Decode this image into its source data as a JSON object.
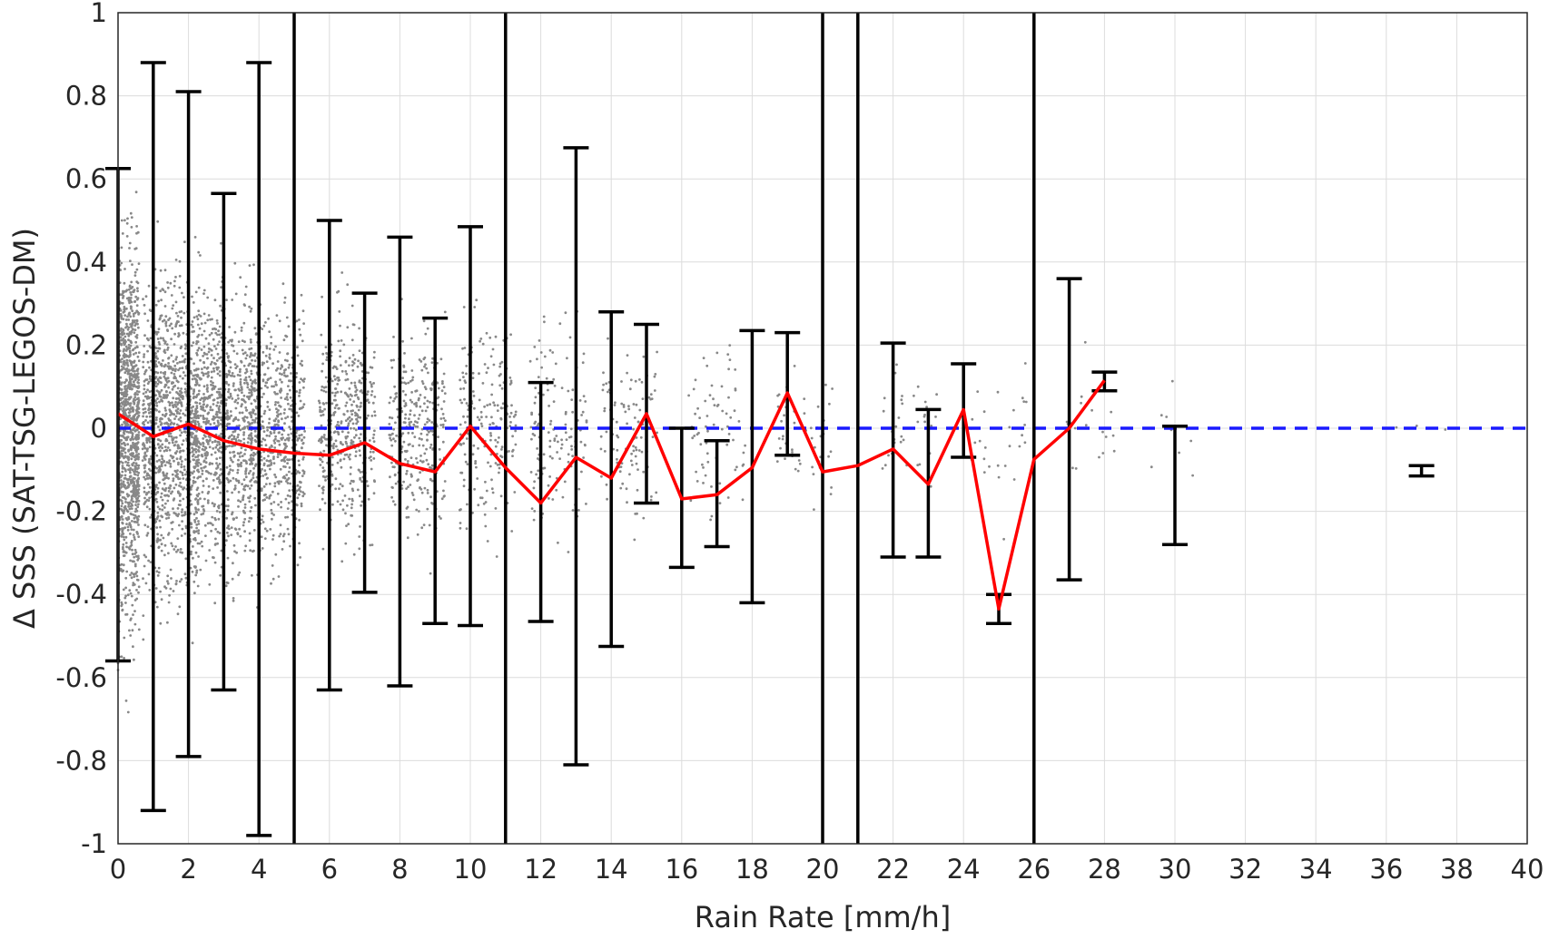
{
  "chart_data": {
    "type": "scatter",
    "xlabel": "Rain Rate [mm/h]",
    "ylabel": "Δ SSS (SAT-TSG-LEGOS-DM)",
    "xlim": [
      0,
      40
    ],
    "ylim": [
      -1,
      1
    ],
    "xticks": [
      0,
      2,
      4,
      6,
      8,
      10,
      12,
      14,
      16,
      18,
      20,
      22,
      24,
      26,
      28,
      30,
      32,
      34,
      36,
      38,
      40
    ],
    "yticks": [
      -1,
      -0.8,
      -0.6,
      -0.4,
      -0.2,
      0,
      0.2,
      0.4,
      0.6,
      0.8,
      1
    ],
    "ytick_labels": [
      "-1",
      "-0.8",
      "-0.6",
      "-0.4",
      "-0.2",
      "0",
      "0.2",
      "0.4",
      "0.6",
      "0.8",
      "1"
    ],
    "grid": true,
    "reference_line": {
      "y": 0,
      "color": "#1a1aff",
      "style": "dashed"
    },
    "mean_line": {
      "color": "#ff0000",
      "x": [
        0,
        1,
        2,
        3,
        4,
        5,
        6,
        7,
        8,
        9,
        10,
        11,
        12,
        13,
        14,
        15,
        16,
        17,
        18,
        19,
        20,
        21,
        22,
        23,
        24,
        25,
        26,
        27,
        28
      ],
      "y": [
        0.035,
        -0.02,
        0.01,
        -0.03,
        -0.05,
        -0.06,
        -0.065,
        -0.035,
        -0.085,
        -0.105,
        0.005,
        -0.095,
        -0.18,
        -0.07,
        -0.12,
        0.035,
        -0.17,
        -0.16,
        -0.095,
        0.085,
        -0.105,
        -0.09,
        -0.05,
        -0.135,
        0.045,
        -0.435,
        -0.075,
        0.0,
        0.115
      ]
    },
    "error_bars": {
      "color": "#000000",
      "x": [
        0,
        1,
        2,
        3,
        4,
        6,
        7,
        8,
        9,
        10,
        12,
        13,
        14,
        15,
        16,
        17,
        18,
        19,
        22,
        23,
        24,
        25,
        27,
        28,
        30,
        37
      ],
      "upper": [
        0.625,
        0.88,
        0.81,
        0.565,
        0.88,
        0.5,
        0.325,
        0.46,
        0.265,
        0.485,
        0.11,
        0.675,
        0.28,
        0.25,
        0.0,
        -0.03,
        0.235,
        0.23,
        0.205,
        0.045,
        0.155,
        -0.4,
        0.36,
        0.135,
        0.005,
        -0.09
      ],
      "lower": [
        -0.56,
        -0.92,
        -0.79,
        -0.63,
        -0.98,
        -0.63,
        -0.395,
        -0.62,
        -0.47,
        -0.475,
        -0.465,
        -0.81,
        -0.525,
        -0.18,
        -0.335,
        -0.285,
        -0.42,
        -0.065,
        -0.31,
        -0.31,
        -0.07,
        -0.47,
        -0.365,
        0.09,
        -0.28,
        -0.115
      ]
    },
    "full_range_lines": {
      "x": [
        5,
        11,
        20,
        21,
        26
      ],
      "color": "#000000"
    },
    "scatter": {
      "color": "#888888",
      "description_density": [
        1.0,
        0.9,
        0.8,
        0.65,
        0.5,
        0.4,
        0.3,
        0.25,
        0.2,
        0.15,
        0.12
      ],
      "clusters": [
        {
          "x": 0.2,
          "spread": 0.55,
          "density": 1.0
        },
        {
          "x": 1.5,
          "spread": 0.45,
          "density": 0.8
        },
        {
          "x": 3.0,
          "spread": 0.4,
          "density": 0.6
        },
        {
          "x": 4.5,
          "spread": 0.35,
          "density": 0.45
        },
        {
          "x": 6.5,
          "spread": 0.32,
          "density": 0.3
        },
        {
          "x": 8.5,
          "spread": 0.3,
          "density": 0.22
        },
        {
          "x": 10.5,
          "spread": 0.3,
          "density": 0.15
        },
        {
          "x": 12.5,
          "spread": 0.3,
          "density": 0.1
        },
        {
          "x": 14.5,
          "spread": 0.28,
          "density": 0.08
        },
        {
          "x": 17.0,
          "spread": 0.25,
          "density": 0.05
        },
        {
          "x": 19.5,
          "spread": 0.22,
          "density": 0.035
        },
        {
          "x": 22.5,
          "spread": 0.22,
          "density": 0.025
        },
        {
          "x": 25.0,
          "spread": 0.22,
          "density": 0.02
        },
        {
          "x": 27.5,
          "spread": 0.25,
          "density": 0.015
        },
        {
          "x": 30.0,
          "spread": 0.2,
          "density": 0.006
        },
        {
          "x": 37.0,
          "spread": 0.02,
          "density": 0.002
        }
      ]
    }
  }
}
